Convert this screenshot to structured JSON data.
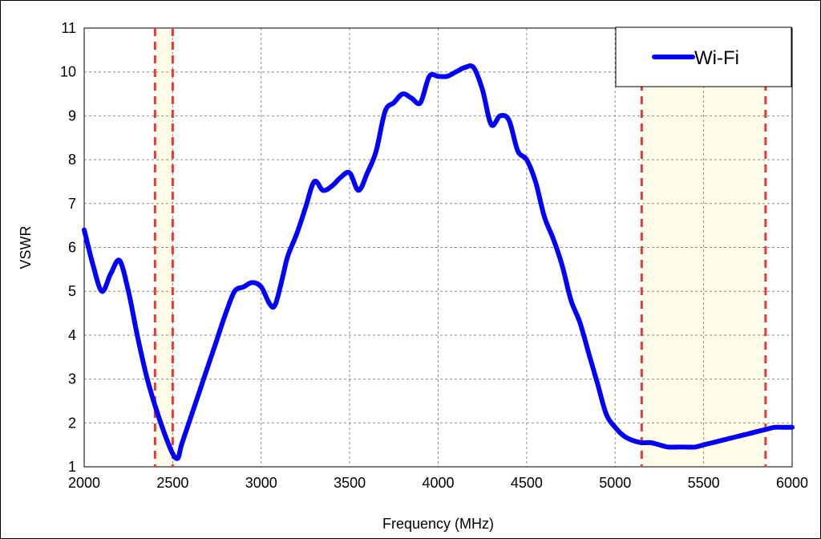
{
  "chart_data": {
    "type": "line",
    "title": "",
    "xlabel": "Frequency (MHz)",
    "ylabel": "VSWR",
    "xlim": [
      2000,
      6000
    ],
    "ylim": [
      1,
      11
    ],
    "x_ticks": [
      "2000",
      "2500",
      "3000",
      "3500",
      "4000",
      "4500",
      "5000",
      "5500",
      "6000"
    ],
    "y_ticks": [
      "1",
      "2",
      "3",
      "4",
      "5",
      "6",
      "7",
      "8",
      "9",
      "10",
      "11"
    ],
    "grid": true,
    "legend_position": "top-right",
    "bands": [
      {
        "from": 2400,
        "to": 2500,
        "fill": "#FFFDE7",
        "edge_color": "#E53935"
      },
      {
        "from": 5150,
        "to": 5850,
        "fill": "#FFFDE7",
        "edge_color": "#E53935"
      }
    ],
    "series": [
      {
        "name": "Wi-Fi",
        "color": "#0000FF",
        "x": [
          2000,
          2050,
          2100,
          2150,
          2200,
          2250,
          2300,
          2350,
          2400,
          2450,
          2500,
          2530,
          2550,
          2600,
          2650,
          2700,
          2750,
          2800,
          2850,
          2900,
          2950,
          3000,
          3050,
          3080,
          3120,
          3150,
          3200,
          3250,
          3300,
          3350,
          3400,
          3450,
          3500,
          3550,
          3600,
          3650,
          3700,
          3750,
          3800,
          3850,
          3900,
          3950,
          4000,
          4050,
          4100,
          4150,
          4200,
          4250,
          4300,
          4350,
          4400,
          4450,
          4500,
          4550,
          4600,
          4650,
          4700,
          4750,
          4800,
          4850,
          4900,
          4950,
          5000,
          5050,
          5100,
          5150,
          5200,
          5250,
          5300,
          5350,
          5400,
          5450,
          5500,
          5550,
          5600,
          5650,
          5700,
          5750,
          5800,
          5850,
          5900,
          5950,
          6000
        ],
        "y": [
          6.4,
          5.6,
          5.0,
          5.4,
          5.7,
          5.0,
          4.0,
          3.1,
          2.4,
          1.8,
          1.3,
          1.2,
          1.5,
          2.1,
          2.7,
          3.3,
          3.9,
          4.5,
          5.0,
          5.1,
          5.2,
          5.1,
          4.7,
          4.7,
          5.3,
          5.8,
          6.3,
          6.9,
          7.5,
          7.3,
          7.4,
          7.6,
          7.7,
          7.3,
          7.7,
          8.2,
          9.1,
          9.3,
          9.5,
          9.4,
          9.3,
          9.9,
          9.9,
          9.9,
          10.0,
          10.1,
          10.1,
          9.6,
          8.8,
          9.0,
          8.9,
          8.2,
          8.0,
          7.5,
          6.7,
          6.2,
          5.6,
          4.8,
          4.3,
          3.6,
          2.9,
          2.2,
          1.9,
          1.7,
          1.6,
          1.55,
          1.55,
          1.5,
          1.45,
          1.45,
          1.45,
          1.45,
          1.5,
          1.55,
          1.6,
          1.65,
          1.7,
          1.75,
          1.8,
          1.85,
          1.9,
          1.9,
          1.9
        ]
      }
    ]
  }
}
